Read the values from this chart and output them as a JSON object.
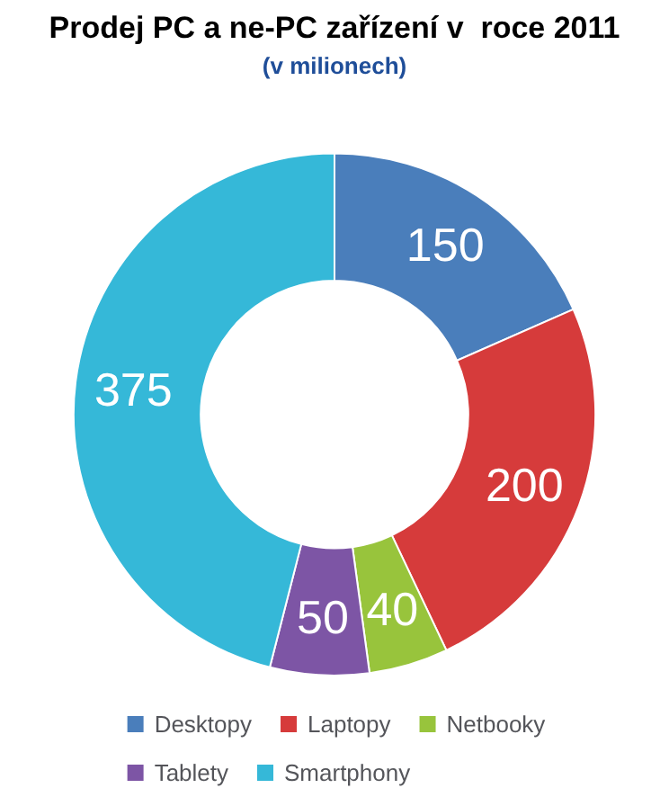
{
  "chart_data": {
    "type": "donut",
    "title": "Prodej PC a ne-PC zařízení v  roce 2011",
    "subtitle": "(v milionech)",
    "categories": [
      "Desktopy",
      "Laptopy",
      "Netbooky",
      "Tablety",
      "Smartphony"
    ],
    "values": [
      150,
      200,
      40,
      50,
      375
    ],
    "colors": [
      "#4a7ebb",
      "#d63b3b",
      "#98c43c",
      "#7d55a5",
      "#35b8d8"
    ],
    "data_labels": true,
    "legend": "bottom"
  }
}
